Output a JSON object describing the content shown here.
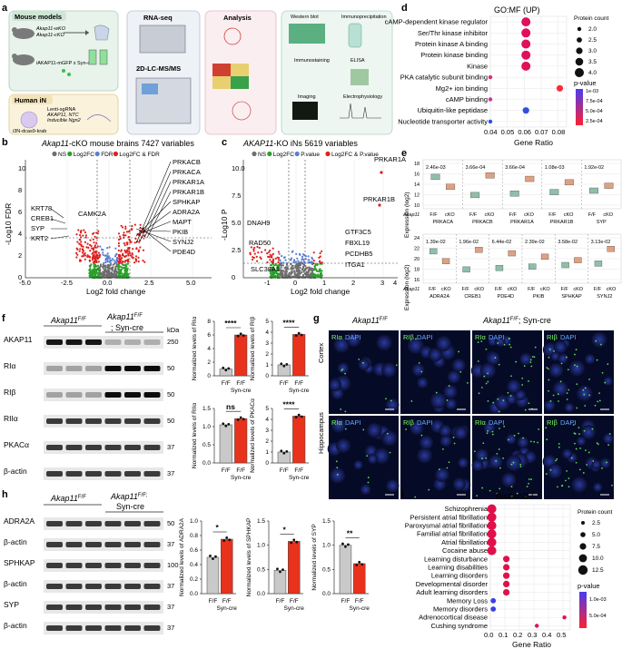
{
  "panels": {
    "a": "a",
    "b": "b",
    "c": "c",
    "d": "d",
    "e": "e",
    "f": "f",
    "g": "g",
    "h": "h",
    "i": "i"
  },
  "panel_a": {
    "mouse_models_title": "Mouse models",
    "mouse_lines": [
      "Akap11-wKO",
      "Akap11-cKO"
    ],
    "sorting_label": "iAKAP11-mGFP x Syn-cre",
    "human_title": "Human iN",
    "human_lines": [
      "Lenti-sgRNA",
      "AKAP11, NTC",
      "Inducible Ngn2"
    ],
    "cell_label": "i3N-dcas9-krab",
    "rnaseq": "RNA-seq",
    "ms": "2D-LC-MS/MS",
    "analysis": "Analysis",
    "validation": [
      "Western blot",
      "Immunoprecipitation",
      "Immunostaining",
      "ELISA",
      "Imaging",
      "Electrophysiology"
    ]
  },
  "panel_b": {
    "title": "Akap11-cKO mouse brains 7427 variables",
    "title_gene": "Akap11",
    "title_rest": "-cKO mouse brains 7427 variables",
    "legend": [
      {
        "label": "NS",
        "color": "#6e6e6e"
      },
      {
        "label": "Log2FC",
        "color": "#2aa02a"
      },
      {
        "label": "FDR",
        "color": "#5a7fd6"
      },
      {
        "label": "Log2FC & FDR",
        "color": "#e0201c"
      }
    ],
    "ylabel": "-Log10 FDR",
    "xlabel": "Log2 fold change",
    "x_ticks": [
      "-5.0",
      "-2.5",
      "0.0",
      "2.5",
      "5.0"
    ],
    "y_ticks": [
      "0",
      "2",
      "4",
      "6",
      "8",
      "10"
    ],
    "labels_left": [
      "KRT78",
      "CREB1",
      "SYP",
      "KRT2"
    ],
    "labels_mid": [
      "CAMK2A"
    ],
    "labels_right": [
      "PRKACB",
      "PRKACA",
      "PRKAR1A",
      "PRKAR1B",
      "SPHKAP",
      "ADRA2A",
      "MAPT",
      "PKIB",
      "SYNJ2",
      "PDE4D"
    ]
  },
  "panel_c": {
    "title_gene": "AKAP11",
    "title_rest": "-KO iNs 5619 variables",
    "legend": [
      {
        "label": "NS",
        "color": "#6e6e6e"
      },
      {
        "label": "Log2FC",
        "color": "#2aa02a"
      },
      {
        "label": "P.value",
        "color": "#5a7fd6"
      },
      {
        "label": "Log2FC & P.value",
        "color": "#e0201c"
      }
    ],
    "ylabel": "-Log10 P",
    "xlabel": "Log2 fold change",
    "x_ticks": [
      "-1",
      "0",
      "1",
      "2",
      "3",
      "4"
    ],
    "y_ticks": [
      "0",
      "2.5",
      "5.0",
      "7.5",
      "10.0"
    ],
    "labels": [
      "PRKAR1A",
      "PRKAR1B",
      "DNAH9",
      "RAD50",
      "GTF3C5",
      "FBXL19",
      "PCDHB5",
      "ITGA1",
      "SLC38A1"
    ]
  },
  "panel_d": {
    "title": "GO:MF (UP)",
    "xlabel": "Gene Ratio",
    "x_ticks": [
      "0.04",
      "0.05",
      "0.06",
      "0.07",
      "0.08"
    ],
    "size_title": "Protein count",
    "size_labels": [
      "2.0",
      "2.5",
      "3.0",
      "3.5",
      "4.0"
    ],
    "color_title": "p-value",
    "color_labels": [
      "1e-03",
      "7.5e-04",
      "5.0e-04",
      "2.5e-04"
    ],
    "chart_data": {
      "type": "scatter",
      "title": "GO:MF (UP)",
      "xlabel": "Gene Ratio",
      "xlim": [
        0.04,
        0.085
      ],
      "terms": [
        "cAMP-dependent kinase regulator",
        "Ser/Thr kinase inhibitor",
        "Protein kinase A binding",
        "Protein kinase binding",
        "Kinase",
        "PKA catalytic subunit binding",
        "Mg2+ ion binding",
        "cAMP binding",
        "Ubiquitin-like peptidase",
        "Nucleotide transporter activity"
      ],
      "x": [
        0.061,
        0.061,
        0.061,
        0.061,
        0.061,
        0.04,
        0.081,
        0.04,
        0.061,
        0.04
      ],
      "count": [
        4,
        4,
        4,
        4,
        4,
        2,
        3,
        2,
        3,
        2
      ],
      "color": [
        "#e0105a",
        "#e0105a",
        "#e0105a",
        "#e0105a",
        "#e0105a",
        "#d6307a",
        "#ff2a3a",
        "#d030a0",
        "#3050e0",
        "#3050e0"
      ]
    }
  },
  "panel_e": {
    "row1_pvalues": [
      "2.46e-03",
      "3.66e-04",
      "3.66e-04",
      "1.08e-03",
      "1.92e-02"
    ],
    "row1_genes": [
      "PRKACA",
      "PRKACB",
      "PRKAR1A",
      "PRKAR1B",
      "SYP"
    ],
    "row2_pvalues": [
      "1.39e-02",
      "1.96e-02",
      "6.44e-02",
      "2.39e-02",
      "3.58e-02",
      "3.13e-02"
    ],
    "row2_genes": [
      "ADRA2A",
      "CREB1",
      "PDE4D",
      "PKIB",
      "SPHKAP",
      "SYNJ2"
    ],
    "genotype_label": "Akap11",
    "ff": "F/F",
    "cko": "cKO",
    "ylabel": "Expression (log2)",
    "y1_ticks": [
      "18",
      "16",
      "14",
      "12",
      "10"
    ],
    "y2_ticks": [
      "24",
      "22",
      "20",
      "18",
      "16"
    ],
    "ff_color": "#8fbfa8",
    "cko_color": "#e0a080"
  },
  "panel_f": {
    "col1_genotype": "Akap11F/F",
    "col1_gene": "Akap11",
    "col1_sup": "F/F",
    "col2_gene": "Akap11",
    "col2_sup": "F/F",
    "col2_suffix": "; Syn-cre",
    "kda": "kDa",
    "bands": [
      {
        "label": "AKAP11",
        "mw": "250"
      },
      {
        "label": "RIα",
        "mw": "50"
      },
      {
        "label": "RIβ",
        "mw": "50"
      },
      {
        "label": "RIIα",
        "mw": "50"
      },
      {
        "label": "PKACα",
        "mw": "37"
      },
      {
        "label": "β-actin",
        "mw": "37"
      }
    ],
    "charts": [
      {
        "ylabel": "Normalized levels of RIα",
        "sig": "****",
        "ff": 1.0,
        "cre": 6.0,
        "ylim": [
          0,
          8
        ],
        "ticks": [
          "0",
          "2",
          "4",
          "6",
          "8"
        ]
      },
      {
        "ylabel": "Normalized levels of RIβ",
        "sig": "****",
        "ff": 1.0,
        "cre": 3.8,
        "ylim": [
          0,
          5
        ],
        "ticks": [
          "0",
          "1",
          "2",
          "3",
          "4",
          "5"
        ]
      },
      {
        "ylabel": "Normalized levels of RIIα",
        "sig": "ns",
        "ff": 1.05,
        "cre": 1.22,
        "ylim": [
          0,
          1.5
        ],
        "ticks": [
          "0.0",
          "0.5",
          "1.0",
          "1.5"
        ]
      },
      {
        "ylabel": "Normalized levels of PKACα",
        "sig": "****",
        "ff": 1.0,
        "cre": 4.3,
        "ylim": [
          0,
          5
        ],
        "ticks": [
          "0",
          "1",
          "2",
          "3",
          "4",
          "5"
        ]
      }
    ],
    "xticks": [
      "F/F",
      "F/F"
    ],
    "xsub": "Syn-cre"
  },
  "panel_g": {
    "col_left_gene": "Akap11",
    "col_left_sup": "F/F",
    "col_right_gene": "Akap11",
    "col_right_sup": "F/F",
    "col_right_suffix": "; Syn-cre",
    "rows": [
      "Cortex",
      "Hippocampus"
    ],
    "tiles": [
      "RIα DAPI",
      "RIβ DAPI",
      "RIα DAPI",
      "RIβ DAPI"
    ]
  },
  "panel_h": {
    "col1_gene": "Akap11",
    "col1_sup": "F/F",
    "col2_gene": "Akap11",
    "col2_sup": "F/F;",
    "col2_suffix": "Syn-cre",
    "bands": [
      {
        "label": "ADRA2A",
        "mw": "50"
      },
      {
        "label": "β-actin",
        "mw": "37"
      },
      {
        "label": "SPHKAP",
        "mw": "100"
      },
      {
        "label": "β-actin",
        "mw": "37"
      },
      {
        "label": "SYP",
        "mw": "37"
      },
      {
        "label": "β-actin",
        "mw": "37"
      }
    ],
    "charts": [
      {
        "ylabel": "Normalized levels of ADRA2A",
        "sig": "*",
        "ff": 0.5,
        "cre": 0.75,
        "ylim": [
          0,
          1.0
        ],
        "ticks": [
          "0.0",
          "0.2",
          "0.4",
          "0.6",
          "0.8",
          "1.0"
        ]
      },
      {
        "ylabel": "Normalized levels of SPHKAP",
        "sig": "*",
        "ff": 0.48,
        "cre": 1.08,
        "ylim": [
          0,
          1.5
        ],
        "ticks": [
          "0.0",
          "0.5",
          "1.0",
          "1.5"
        ]
      },
      {
        "ylabel": "Normalized levels of SYP",
        "sig": "**",
        "ff": 1.0,
        "cre": 0.62,
        "ylim": [
          0,
          1.5
        ],
        "ticks": [
          "0.0",
          "0.5",
          "1.0",
          "1.5"
        ]
      }
    ],
    "xticks": [
      "F/F",
      "F/F"
    ],
    "xsub": "Syn-cre"
  },
  "panel_i": {
    "title": "DisGeNET",
    "xlabel": "Gene Ratio",
    "x_ticks": [
      "0.0",
      "0.1",
      "0.2",
      "0.3",
      "0.4",
      "0.5"
    ],
    "size_title": "Protein count",
    "size_labels": [
      "2.5",
      "5.0",
      "7.5",
      "10.0",
      "12.5"
    ],
    "color_title": "p-value",
    "color_labels": [
      "1.0e-03",
      "5.0e-04"
    ],
    "chart_data": {
      "type": "scatter",
      "title": "DisGeNET",
      "xlabel": "Gene Ratio",
      "xlim": [
        0,
        0.55
      ],
      "terms": [
        "Schizophrenia",
        "Persistent atrial fibrillation",
        "Paroxysmal atrial fibrillation",
        "Familial atrial fibrillation",
        "Atrial fibrillation",
        "Cocaine abuse",
        "Learning disturbance",
        "Learning disabilities",
        "Learning disorders",
        "Developmental disorder",
        "Adult learning disorders",
        "Memory Loss",
        "Memory disorders",
        "Adrenocortical disease",
        "Cushing syndrome"
      ],
      "x": [
        0.01,
        0.01,
        0.01,
        0.01,
        0.01,
        0.01,
        0.11,
        0.11,
        0.11,
        0.11,
        0.11,
        0.02,
        0.02,
        0.51,
        0.32
      ],
      "count": [
        12.5,
        12.5,
        12.5,
        12.5,
        12.5,
        12.5,
        7.5,
        7.5,
        7.5,
        7.5,
        7.5,
        5.0,
        5.0,
        2.5,
        2.5
      ],
      "color": [
        "#e0104a",
        "#e0104a",
        "#e0104a",
        "#e0104a",
        "#e0104a",
        "#e0104a",
        "#e0104a",
        "#e0104a",
        "#e0104a",
        "#e0104a",
        "#e0104a",
        "#3a40e8",
        "#3a40e8",
        "#e0104a",
        "#e0104a"
      ]
    }
  }
}
